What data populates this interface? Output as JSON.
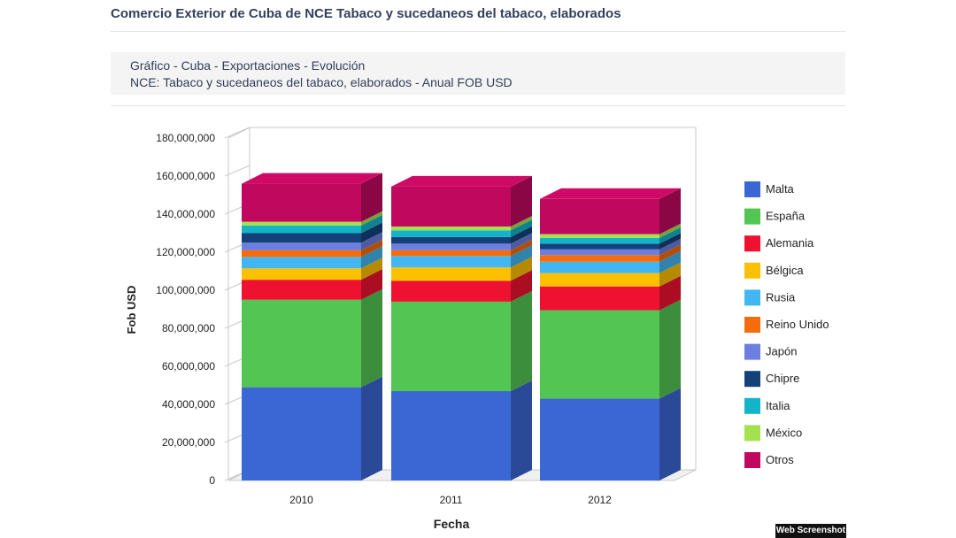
{
  "header": {
    "title": "Comercio Exterior de Cuba de NCE Tabaco y sucedaneos del tabaco, elaborados",
    "subtitle_line1": "Gráfico - Cuba - Exportaciones - Evolución",
    "subtitle_line2": "NCE: Tabaco y sucedaneos del tabaco, elaborados - Anual FOB USD"
  },
  "watermark": "Web Screenshot",
  "chart_data": {
    "type": "bar",
    "stacked": true,
    "three_d": true,
    "title": "",
    "xlabel": "Fecha",
    "ylabel": "Fob USD",
    "ylim": [
      0,
      180000000
    ],
    "y_ticks": [
      "0",
      "20,000,000",
      "40,000,000",
      "60,000,000",
      "80,000,000",
      "100,000,000",
      "120,000,000",
      "140,000,000",
      "160,000,000",
      "180,000,000"
    ],
    "categories": [
      "2010",
      "2011",
      "2012"
    ],
    "legend_position": "right",
    "grid": false,
    "series": [
      {
        "name": "Malta",
        "color": "#3a67d3",
        "values": [
          49000000,
          47000000,
          43000000
        ]
      },
      {
        "name": "España",
        "color": "#53c553",
        "values": [
          46000000,
          47000000,
          46500000
        ]
      },
      {
        "name": "Alemania",
        "color": "#ee1230",
        "values": [
          10500000,
          11000000,
          12500000
        ]
      },
      {
        "name": "Bélgica",
        "color": "#fbc000",
        "values": [
          6000000,
          7000000,
          7000000
        ]
      },
      {
        "name": "Rusia",
        "color": "#42b6f0",
        "values": [
          6000000,
          6000000,
          6000000
        ]
      },
      {
        "name": "Reino Unido",
        "color": "#f56c0c",
        "values": [
          3500000,
          3000000,
          3500000
        ]
      },
      {
        "name": "Japón",
        "color": "#6c7ee0",
        "values": [
          4000000,
          3500000,
          3000000
        ]
      },
      {
        "name": "Chipre",
        "color": "#14417a",
        "values": [
          5000000,
          3500000,
          3000000
        ]
      },
      {
        "name": "Italia",
        "color": "#14b4c8",
        "values": [
          4000000,
          3500000,
          3000000
        ]
      },
      {
        "name": "México",
        "color": "#a5e04f",
        "values": [
          2000000,
          2000000,
          2000000
        ]
      },
      {
        "name": "Otros",
        "color": "#c0095e",
        "values": [
          20000000,
          21000000,
          18500000
        ]
      }
    ]
  }
}
